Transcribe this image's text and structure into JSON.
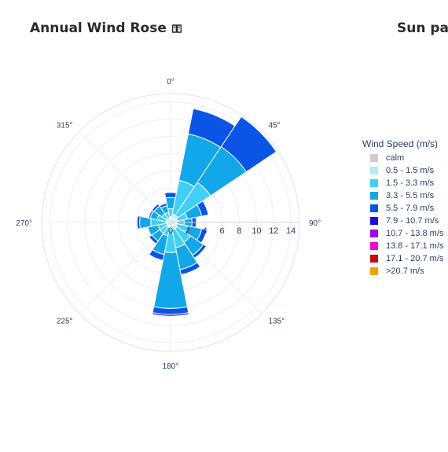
{
  "header": {
    "title": "Annual Wind Rose",
    "right_title": "Sun path"
  },
  "legend": {
    "title": "Wind Speed (m/s)",
    "items": [
      {
        "label": "calm",
        "color": "#cccccc"
      },
      {
        "label": "0.5 - 1.5 m/s",
        "color": "#b2ebf5"
      },
      {
        "label": "1.5 - 3.3 m/s",
        "color": "#40d0f5"
      },
      {
        "label": "3.3 - 5.5 m/s",
        "color": "#12a7e8"
      },
      {
        "label": "5.5 - 7.9 m/s",
        "color": "#0a55e6"
      },
      {
        "label": "7.9 - 10.7 m/s",
        "color": "#1a0fd6"
      },
      {
        "label": "10.7 - 13.8 m/s",
        "color": "#9b0bea"
      },
      {
        "label": "13.8 - 17.1 m/s",
        "color": "#ee0ad6"
      },
      {
        "label": "17.1 - 20.7 m/s",
        "color": "#c30c0c"
      },
      {
        "label": ">20.7 m/s",
        "color": "#f5a000"
      }
    ]
  },
  "chart_data": {
    "type": "barpolar",
    "angular_ticks": [
      "0°",
      "45°",
      "90°",
      "135°",
      "180°",
      "225°",
      "270°",
      "315°"
    ],
    "radial_ticks": [
      "0",
      "2",
      "4",
      "6",
      "8",
      "10",
      "12",
      "14"
    ],
    "radial_range": [
      0,
      15
    ],
    "direction": "clockwise",
    "rotation": "0° at top",
    "sector_width_deg": 22.5,
    "series_names": [
      "0.5 - 1.5 m/s",
      "1.5 - 3.3 m/s",
      "3.3 - 5.5 m/s",
      "5.5 - 7.9 m/s",
      "7.9 - 10.7 m/s"
    ],
    "sectors": [
      {
        "direction": 0,
        "cumulative": [
          0.7,
          1.6,
          2.9,
          3.5,
          3.5
        ]
      },
      {
        "direction": 22.5,
        "cumulative": [
          1.0,
          5.0,
          10.5,
          13.5,
          13.5
        ]
      },
      {
        "direction": 45,
        "cumulative": [
          1.0,
          5.6,
          10.6,
          14.8,
          14.8
        ]
      },
      {
        "direction": 67.5,
        "cumulative": [
          0.8,
          2.0,
          3.7,
          4.5,
          4.5
        ]
      },
      {
        "direction": 90,
        "cumulative": [
          0.7,
          1.6,
          2.5,
          3.0,
          3.0
        ]
      },
      {
        "direction": 112.5,
        "cumulative": [
          0.8,
          2.0,
          3.7,
          4.3,
          4.3
        ]
      },
      {
        "direction": 135,
        "cumulative": [
          0.9,
          2.8,
          4.6,
          5.0,
          5.0
        ]
      },
      {
        "direction": 157.5,
        "cumulative": [
          0.8,
          3.0,
          5.6,
          6.2,
          6.2
        ]
      },
      {
        "direction": 180,
        "cumulative": [
          0.8,
          3.5,
          10.0,
          10.7,
          10.9
        ]
      },
      {
        "direction": 202.5,
        "cumulative": [
          0.6,
          1.6,
          3.8,
          4.5,
          4.5
        ]
      },
      {
        "direction": 225,
        "cumulative": [
          0.4,
          1.5,
          2.6,
          3.0,
          3.0
        ]
      },
      {
        "direction": 247.5,
        "cumulative": [
          0.4,
          1.5,
          2.7,
          2.8,
          2.8
        ]
      },
      {
        "direction": 270,
        "cumulative": [
          0.6,
          2.3,
          3.6,
          3.9,
          3.9
        ]
      },
      {
        "direction": 292.5,
        "cumulative": [
          0.5,
          1.6,
          2.4,
          2.6,
          2.6
        ]
      },
      {
        "direction": 315,
        "cumulative": [
          0.5,
          1.2,
          2.3,
          2.6,
          2.6
        ]
      },
      {
        "direction": 337.5,
        "cumulative": [
          0.5,
          1.2,
          2.0,
          2.3,
          2.3
        ]
      }
    ]
  }
}
